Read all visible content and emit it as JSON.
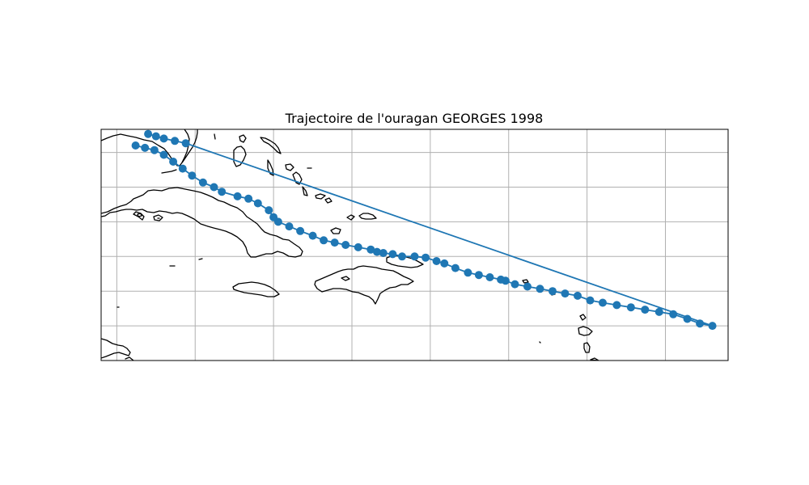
{
  "figure": {
    "title": "Trajectoire de l'ouragan GEORGES 1998"
  },
  "colors": {
    "track": "#1f77b4",
    "coastline": "#000000",
    "grid": "#b0b0b0"
  },
  "chart_data": {
    "type": "line",
    "title": "Trajectoire de l'ouragan GEORGES 1998",
    "series": [
      {
        "points": [
          [
            -83.0,
            24.8
          ],
          [
            -82.5,
            24.7
          ],
          [
            -82.0,
            24.6
          ],
          [
            -81.3,
            24.5
          ],
          [
            -80.6,
            24.4
          ],
          [
            -47.0,
            16.5
          ],
          [
            -47.8,
            16.6
          ],
          [
            -48.6,
            16.8
          ],
          [
            -49.5,
            17.0
          ],
          [
            -50.4,
            17.1
          ],
          [
            -51.3,
            17.2
          ],
          [
            -52.2,
            17.3
          ],
          [
            -53.1,
            17.4
          ],
          [
            -54.0,
            17.5
          ],
          [
            -54.8,
            17.6
          ],
          [
            -55.6,
            17.8
          ],
          [
            -56.4,
            17.9
          ],
          [
            -57.2,
            18.0
          ],
          [
            -58.0,
            18.1
          ],
          [
            -58.8,
            18.2
          ],
          [
            -59.6,
            18.3
          ],
          [
            -60.2,
            18.45
          ],
          [
            -60.5,
            18.5
          ],
          [
            -61.2,
            18.6
          ],
          [
            -61.9,
            18.7
          ],
          [
            -62.6,
            18.8
          ],
          [
            -63.4,
            19.0
          ],
          [
            -64.1,
            19.2
          ],
          [
            -64.6,
            19.3
          ],
          [
            -65.3,
            19.45
          ],
          [
            -66.0,
            19.5
          ],
          [
            -66.8,
            19.5
          ],
          [
            -67.4,
            19.6
          ],
          [
            -68.0,
            19.65
          ],
          [
            -68.4,
            19.7
          ],
          [
            -68.8,
            19.8
          ],
          [
            -69.6,
            19.9
          ],
          [
            -70.4,
            20.0
          ],
          [
            -71.1,
            20.1
          ],
          [
            -71.8,
            20.2
          ],
          [
            -72.5,
            20.4
          ],
          [
            -73.3,
            20.6
          ],
          [
            -74.0,
            20.8
          ],
          [
            -74.7,
            21.0
          ],
          [
            -75.0,
            21.2
          ],
          [
            -75.3,
            21.5
          ],
          [
            -76.0,
            21.8
          ],
          [
            -76.6,
            22.0
          ],
          [
            -77.3,
            22.1
          ],
          [
            -78.3,
            22.3
          ],
          [
            -78.8,
            22.5
          ],
          [
            -79.5,
            22.7
          ],
          [
            -80.2,
            23.0
          ],
          [
            -80.8,
            23.3
          ],
          [
            -81.4,
            23.6
          ],
          [
            -82.0,
            23.9
          ],
          [
            -82.6,
            24.1
          ],
          [
            -83.2,
            24.2
          ],
          [
            -83.8,
            24.3
          ]
        ]
      }
    ],
    "xlim": [
      -86.0,
      -46.0
    ],
    "ylim": [
      15.0,
      25.0
    ],
    "grid": true,
    "xlabel": "",
    "ylabel": ""
  }
}
